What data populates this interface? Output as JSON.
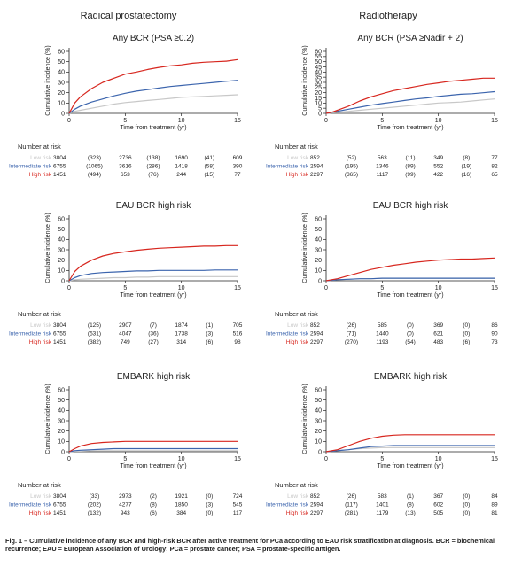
{
  "column_titles": [
    "Radical prostatectomy",
    "Radiotherapy"
  ],
  "number_at_risk_label": "Number at risk",
  "risk_groups": [
    {
      "name": "Low risk",
      "color": "#c8c8c8"
    },
    {
      "name": "Intermediate risk",
      "color": "#3b64ad"
    },
    {
      "name": "High risk",
      "color": "#d7261e"
    }
  ],
  "caption": "Fig. 1 – Cumulative incidence of any BCR and high-risk BCR after active treatment for PCa according to EAU risk stratification at diagnosis. BCR = biochemical recurrence; EAU = European Association of Urology; PCa = prostate cancer; PSA = prostate-specific antigen.",
  "chart_data": [
    {
      "type": "line",
      "column": 0,
      "row": 0,
      "title": "Any BCR (PSA ≥0.2)",
      "xlabel": "Time from treatment (yr)",
      "ylabel": "Cumulative incidence (%)",
      "xlim": [
        0,
        15
      ],
      "ylim": [
        0,
        60
      ],
      "xticks": [
        0,
        5,
        10,
        15
      ],
      "yticks": [
        0,
        10,
        20,
        30,
        40,
        50,
        60
      ],
      "x": [
        0,
        0.5,
        1,
        2,
        3,
        4,
        5,
        6,
        7,
        8,
        9,
        10,
        11,
        12,
        13,
        14,
        15
      ],
      "series": [
        {
          "name": "Low risk",
          "values": [
            0,
            2,
            3,
            5,
            7,
            9,
            10.5,
            11.5,
            12.5,
            13.5,
            14.5,
            15.5,
            16,
            16.5,
            17,
            17.5,
            18
          ]
        },
        {
          "name": "Intermediate risk",
          "values": [
            0,
            4,
            7,
            11,
            14,
            17,
            19.5,
            21.5,
            23,
            24.5,
            26,
            27,
            28,
            29,
            30,
            31,
            32
          ]
        },
        {
          "name": "High risk",
          "values": [
            0,
            10,
            16,
            24,
            30,
            34,
            38,
            40,
            42.5,
            44.5,
            46,
            47,
            48.5,
            49.5,
            50,
            50.5,
            52
          ]
        }
      ],
      "number_at_risk": {
        "columns": [
          "",
          "",
          "5",
          "",
          "10",
          "",
          "15"
        ],
        "rows": [
          [
            "3804",
            "(323)",
            "2736",
            "(138)",
            "1690",
            "(41)",
            "609"
          ],
          [
            "6755",
            "(1065)",
            "3616",
            "(286)",
            "1418",
            "(58)",
            "390"
          ],
          [
            "1451",
            "(494)",
            "653",
            "(76)",
            "244",
            "(15)",
            "77"
          ]
        ]
      }
    },
    {
      "type": "line",
      "column": 1,
      "row": 0,
      "title": "Any BCR (PSA ≥Nadir + 2)",
      "xlabel": "Time from treatment (yr)",
      "ylabel": "Cumulative incidence (%)",
      "xlim": [
        0,
        15
      ],
      "ylim": [
        0,
        60
      ],
      "xticks": [
        0,
        5,
        10,
        15
      ],
      "yticks": [
        0,
        5,
        10,
        15,
        20,
        25,
        30,
        35,
        40,
        45,
        50,
        55,
        60
      ],
      "x": [
        0,
        0.5,
        1,
        2,
        3,
        4,
        5,
        6,
        7,
        8,
        9,
        10,
        11,
        12,
        13,
        14,
        15
      ],
      "series": [
        {
          "name": "Low risk",
          "values": [
            0,
            0.5,
            1,
            2,
            3,
            4,
            5,
            6,
            7,
            8,
            9,
            10,
            10.5,
            11,
            12,
            13,
            14
          ]
        },
        {
          "name": "Intermediate risk",
          "values": [
            0,
            1,
            2,
            4,
            6,
            8,
            9.5,
            11,
            12.5,
            14,
            15,
            16.5,
            17.5,
            18.5,
            19,
            20,
            21
          ]
        },
        {
          "name": "High risk",
          "values": [
            0,
            1,
            3,
            7,
            12,
            16,
            19,
            22,
            24,
            26,
            28,
            29.5,
            31,
            32,
            33,
            34,
            34
          ]
        }
      ],
      "number_at_risk": {
        "columns": [
          "",
          "",
          "5",
          "",
          "10",
          "",
          "15"
        ],
        "rows": [
          [
            "852",
            "(52)",
            "563",
            "(11)",
            "349",
            "(8)",
            "77"
          ],
          [
            "2594",
            "(195)",
            "1346",
            "(89)",
            "552",
            "(19)",
            "82"
          ],
          [
            "2297",
            "(365)",
            "1117",
            "(99)",
            "422",
            "(16)",
            "65"
          ]
        ]
      }
    },
    {
      "type": "line",
      "column": 0,
      "row": 1,
      "title": "EAU BCR high risk",
      "xlabel": "Time from treatment (yr)",
      "ylabel": "Cumulative incidence (%)",
      "xlim": [
        0,
        15
      ],
      "ylim": [
        0,
        60
      ],
      "xticks": [
        0,
        5,
        10,
        15
      ],
      "yticks": [
        0,
        10,
        20,
        30,
        40,
        50,
        60
      ],
      "x": [
        0,
        0.5,
        1,
        2,
        3,
        4,
        5,
        6,
        7,
        8,
        9,
        10,
        11,
        12,
        13,
        14,
        15
      ],
      "series": [
        {
          "name": "Low risk",
          "values": [
            0,
            1,
            1.5,
            2,
            2.5,
            3,
            3,
            3.5,
            3.5,
            4,
            4,
            4,
            4,
            4,
            4,
            4,
            4
          ]
        },
        {
          "name": "Intermediate risk",
          "values": [
            0,
            3,
            5,
            7,
            8,
            8.5,
            9,
            9.5,
            9.5,
            10,
            10,
            10,
            10,
            10,
            10.5,
            10.5,
            10.5
          ]
        },
        {
          "name": "High risk",
          "values": [
            0,
            9,
            14,
            20,
            24,
            26.5,
            28,
            29.5,
            30.5,
            31.5,
            32,
            32.5,
            33,
            33.5,
            33.5,
            34,
            34
          ]
        }
      ],
      "number_at_risk": {
        "columns": [
          "",
          "",
          "5",
          "",
          "10",
          "",
          "15"
        ],
        "rows": [
          [
            "3804",
            "(125)",
            "2907",
            "(7)",
            "1874",
            "(1)",
            "705"
          ],
          [
            "6755",
            "(531)",
            "4047",
            "(36)",
            "1738",
            "(3)",
            "516"
          ],
          [
            "1451",
            "(382)",
            "749",
            "(27)",
            "314",
            "(6)",
            "98"
          ]
        ]
      }
    },
    {
      "type": "line",
      "column": 1,
      "row": 1,
      "title": "EAU BCR high risk",
      "xlabel": "Time from treatment (yr)",
      "ylabel": "Cumulative incidence (%)",
      "xlim": [
        0,
        15
      ],
      "ylim": [
        0,
        60
      ],
      "xticks": [
        0,
        5,
        10,
        15
      ],
      "yticks": [
        0,
        10,
        20,
        30,
        40,
        50,
        60
      ],
      "x": [
        0,
        0.5,
        1,
        2,
        3,
        4,
        5,
        6,
        7,
        8,
        9,
        10,
        11,
        12,
        13,
        14,
        15
      ],
      "series": [
        {
          "name": "Low risk",
          "values": [
            0,
            0.5,
            1,
            1.5,
            2,
            2,
            2.5,
            2.5,
            2.5,
            2.5,
            2.5,
            2.5,
            2.5,
            2.5,
            2.5,
            2.5,
            2.5
          ]
        },
        {
          "name": "Intermediate risk",
          "values": [
            0,
            0.5,
            1,
            1.5,
            2,
            2,
            2.5,
            2.5,
            2.5,
            2.5,
            2.5,
            2.5,
            2.5,
            2.5,
            2.5,
            2.5,
            2.5
          ]
        },
        {
          "name": "High risk",
          "values": [
            0,
            1,
            2,
            5,
            8,
            11,
            13,
            15,
            16.5,
            18,
            19,
            20,
            20.5,
            21,
            21,
            21.5,
            22
          ]
        }
      ],
      "number_at_risk": {
        "columns": [
          "",
          "",
          "5",
          "",
          "10",
          "",
          "15"
        ],
        "rows": [
          [
            "852",
            "(26)",
            "585",
            "(0)",
            "369",
            "(0)",
            "86"
          ],
          [
            "2594",
            "(71)",
            "1440",
            "(0)",
            "621",
            "(0)",
            "90"
          ],
          [
            "2297",
            "(270)",
            "1193",
            "(54)",
            "483",
            "(6)",
            "73"
          ]
        ]
      }
    },
    {
      "type": "line",
      "column": 0,
      "row": 2,
      "title": "EMBARK high risk",
      "xlabel": "Time from treatment (yr)",
      "ylabel": "Cumulative incidence (%)",
      "xlim": [
        0,
        15
      ],
      "ylim": [
        0,
        60
      ],
      "xticks": [
        0,
        5,
        10,
        15
      ],
      "yticks": [
        0,
        10,
        20,
        30,
        40,
        50,
        60
      ],
      "x": [
        0,
        0.5,
        1,
        2,
        3,
        4,
        5,
        6,
        7,
        8,
        9,
        10,
        11,
        12,
        13,
        14,
        15
      ],
      "series": [
        {
          "name": "Low risk",
          "values": [
            0,
            0.5,
            0.5,
            1,
            1,
            1,
            1,
            1,
            1,
            1,
            1,
            1,
            1,
            1,
            1,
            1,
            1
          ]
        },
        {
          "name": "Intermediate risk",
          "values": [
            0,
            1,
            1.5,
            2,
            2.5,
            3,
            3,
            3,
            3,
            3,
            3,
            3,
            3,
            3,
            3,
            3,
            3
          ]
        },
        {
          "name": "High risk",
          "values": [
            0,
            3,
            5.5,
            8,
            9,
            9.5,
            10,
            10,
            10,
            10,
            10,
            10,
            10,
            10,
            10,
            10,
            10
          ]
        }
      ],
      "number_at_risk": {
        "columns": [
          "",
          "",
          "5",
          "",
          "10",
          "",
          "15"
        ],
        "rows": [
          [
            "3804",
            "(33)",
            "2973",
            "(2)",
            "1921",
            "(0)",
            "724"
          ],
          [
            "6755",
            "(202)",
            "4277",
            "(8)",
            "1850",
            "(3)",
            "545"
          ],
          [
            "1451",
            "(132)",
            "943",
            "(6)",
            "384",
            "(0)",
            "117"
          ]
        ]
      }
    },
    {
      "type": "line",
      "column": 1,
      "row": 2,
      "title": "EMBARK high risk",
      "xlabel": "Time from treatment (yr)",
      "ylabel": "Cumulative incidence (%)",
      "xlim": [
        0,
        15
      ],
      "ylim": [
        0,
        60
      ],
      "xticks": [
        0,
        5,
        10,
        15
      ],
      "yticks": [
        0,
        10,
        20,
        30,
        40,
        50,
        60
      ],
      "x": [
        0,
        0.5,
        1,
        2,
        3,
        4,
        5,
        6,
        7,
        8,
        9,
        10,
        11,
        12,
        13,
        14,
        15
      ],
      "series": [
        {
          "name": "Low risk",
          "values": [
            0,
            0.5,
            1,
            2,
            3,
            3.5,
            4,
            4,
            4,
            4,
            4,
            4,
            4,
            4,
            4,
            4,
            4
          ]
        },
        {
          "name": "Intermediate risk",
          "values": [
            0,
            0.5,
            1,
            2,
            3.5,
            5,
            5.5,
            6,
            6,
            6,
            6,
            6,
            6,
            6,
            6,
            6,
            6
          ]
        },
        {
          "name": "High risk",
          "values": [
            0,
            1,
            2,
            6,
            10,
            13,
            15,
            16,
            16.5,
            16.5,
            16.5,
            16.5,
            16.5,
            16.5,
            16.5,
            16.5,
            16.5
          ]
        }
      ],
      "number_at_risk": {
        "columns": [
          "",
          "",
          "5",
          "",
          "10",
          "",
          "15"
        ],
        "rows": [
          [
            "852",
            "(26)",
            "583",
            "(1)",
            "367",
            "(0)",
            "84"
          ],
          [
            "2594",
            "(117)",
            "1401",
            "(8)",
            "602",
            "(0)",
            "89"
          ],
          [
            "2297",
            "(281)",
            "1179",
            "(13)",
            "505",
            "(0)",
            "81"
          ]
        ]
      }
    }
  ]
}
